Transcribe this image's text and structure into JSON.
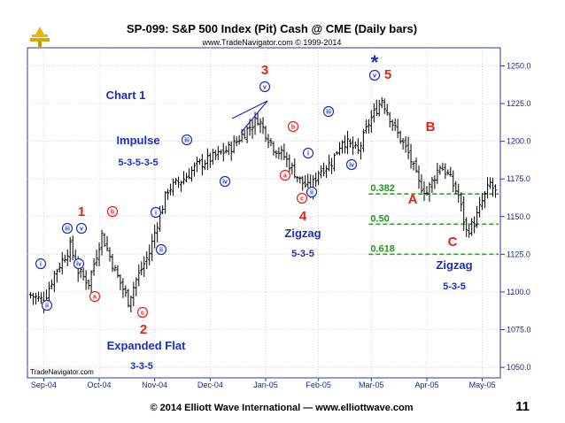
{
  "chart_data": {
    "type": "ohlc",
    "title": "SP-099:  S&P 500 Index (Pit) Cash @ CME  (Daily bars)",
    "subtitle": "www.TradeNavigator.com © 1999-2014",
    "watermark": "TradeNavigator.com",
    "y_ticks": [
      "1250.0",
      "1225.0",
      "1200.0",
      "1175.0",
      "1150.0",
      "1125.0",
      "1100.0",
      "1075.0",
      "1050.0"
    ],
    "y_values": [
      1250,
      1225,
      1200,
      1175,
      1150,
      1125,
      1100,
      1075,
      1050
    ],
    "ylim": [
      1043,
      1262
    ],
    "x_ticks": [
      {
        "label": "Sep-04",
        "index": 5
      },
      {
        "label": "Oct-04",
        "index": 26
      },
      {
        "label": "Nov-04",
        "index": 47
      },
      {
        "label": "Dec-04",
        "index": 68
      },
      {
        "label": "Jan-05",
        "index": 89
      },
      {
        "label": "Feb-05",
        "index": 109
      },
      {
        "label": "Mar-05",
        "index": 129
      },
      {
        "label": "Apr-05",
        "index": 150
      },
      {
        "label": "May-05",
        "index": 171
      }
    ],
    "bar_count": 177,
    "path": [
      [
        0,
        1098
      ],
      [
        5,
        1094
      ],
      [
        9,
        1112
      ],
      [
        15,
        1130
      ],
      [
        18,
        1114
      ],
      [
        22,
        1106
      ],
      [
        27,
        1138
      ],
      [
        32,
        1114
      ],
      [
        37,
        1094
      ],
      [
        40,
        1108
      ],
      [
        45,
        1126
      ],
      [
        48,
        1146
      ],
      [
        52,
        1168
      ],
      [
        58,
        1175
      ],
      [
        63,
        1184
      ],
      [
        70,
        1190
      ],
      [
        76,
        1196
      ],
      [
        80,
        1204
      ],
      [
        86,
        1215
      ],
      [
        92,
        1196
      ],
      [
        96,
        1190
      ],
      [
        102,
        1174
      ],
      [
        106,
        1168
      ],
      [
        109,
        1180
      ],
      [
        114,
        1186
      ],
      [
        118,
        1201
      ],
      [
        124,
        1193
      ],
      [
        128,
        1212
      ],
      [
        133,
        1228
      ],
      [
        138,
        1208
      ],
      [
        143,
        1192
      ],
      [
        147,
        1172
      ],
      [
        150,
        1166
      ],
      [
        155,
        1184
      ],
      [
        158,
        1178
      ],
      [
        162,
        1164
      ],
      [
        165,
        1140
      ],
      [
        168,
        1146
      ],
      [
        171,
        1160
      ],
      [
        174,
        1172
      ],
      [
        176,
        1166
      ]
    ],
    "fib_levels": [
      {
        "label": "0.382",
        "value": 1165
      },
      {
        "label": "0.50",
        "value": 1145
      },
      {
        "label": "0.618",
        "value": 1125
      }
    ]
  },
  "annotations": {
    "chart_label": "Chart 1",
    "impulse": "Impulse",
    "impulse_count": "5-3-5-3-5",
    "expanded_flat": "Expanded Flat",
    "expanded_flat_count": "3-3-5",
    "zigzag1": "Zigzag",
    "zigzag1_count": "5-3-5",
    "zigzag2": "Zigzag",
    "zigzag2_count": "5-3-5",
    "wave1": "1",
    "wave2": "2",
    "wave3": "3",
    "wave4": "4",
    "wave5": "5",
    "star": "*",
    "waveA": "A",
    "waveB": "B",
    "waveC": "C",
    "circles": [
      {
        "t": "i",
        "c": "blue",
        "x": 46,
        "y": 298
      },
      {
        "t": "ii",
        "c": "blue",
        "x": 53,
        "y": 345
      },
      {
        "t": "iii",
        "c": "blue",
        "x": 76,
        "y": 258
      },
      {
        "t": "iv",
        "c": "blue",
        "x": 89,
        "y": 298
      },
      {
        "t": "v",
        "c": "blue",
        "x": 92,
        "y": 258
      },
      {
        "t": "a",
        "c": "red",
        "x": 107,
        "y": 335
      },
      {
        "t": "b",
        "c": "red",
        "x": 127,
        "y": 239
      },
      {
        "t": "c",
        "c": "red",
        "x": 161,
        "y": 353
      },
      {
        "t": "i",
        "c": "blue",
        "x": 176,
        "y": 240
      },
      {
        "t": "ii",
        "c": "blue",
        "x": 182,
        "y": 282
      },
      {
        "t": "iii",
        "c": "blue",
        "x": 211,
        "y": 158
      },
      {
        "t": "iv",
        "c": "blue",
        "x": 254,
        "y": 205
      },
      {
        "t": "v",
        "c": "blue",
        "x": 299,
        "y": 98
      },
      {
        "t": "a",
        "c": "red",
        "x": 322,
        "y": 198
      },
      {
        "t": "b",
        "c": "red",
        "x": 331,
        "y": 143
      },
      {
        "t": "c",
        "c": "red",
        "x": 341,
        "y": 224
      },
      {
        "t": "i",
        "c": "blue",
        "x": 348,
        "y": 173
      },
      {
        "t": "ii",
        "c": "blue",
        "x": 352,
        "y": 217
      },
      {
        "t": "iii",
        "c": "blue",
        "x": 371,
        "y": 126
      },
      {
        "t": "iv",
        "c": "blue",
        "x": 397,
        "y": 186
      },
      {
        "t": "v",
        "c": "blue",
        "x": 423,
        "y": 85
      }
    ]
  },
  "footer": {
    "copyright": "© 2014 Elliott Wave International — www.elliottwave.com",
    "page_number": "11"
  },
  "colors": {
    "bars": "#000000",
    "fib": "#22aa22",
    "blue": "#1a2fc0",
    "red": "#e8201a",
    "logo": "#e8b800"
  }
}
